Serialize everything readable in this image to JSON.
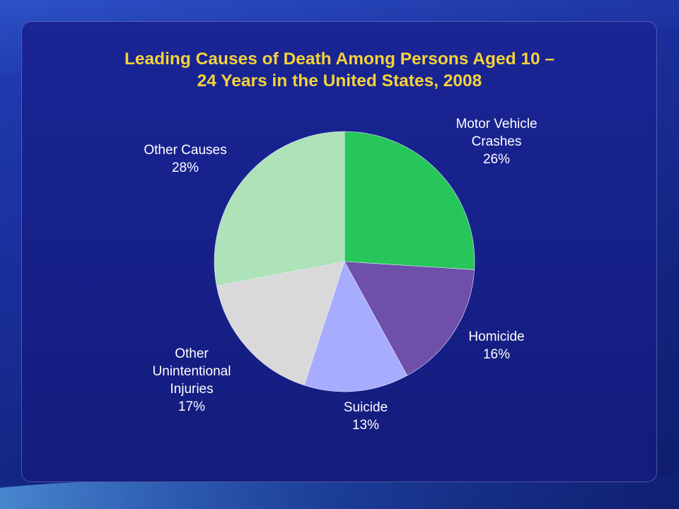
{
  "slide": {
    "title_line1": "Leading Causes of Death Among Persons Aged 10 –",
    "title_line2": "24 Years in the United States, 2008"
  },
  "chart_data": {
    "type": "pie",
    "title": "Leading Causes of Death Among Persons Aged 10 – 24 Years in the United States, 2008",
    "unit": "%",
    "slices": [
      {
        "label": "Motor Vehicle Crashes",
        "value": 26,
        "display": "26%",
        "color": "#26c65a",
        "label_lines": [
          "Motor Vehicle",
          "Crashes",
          "26%"
        ]
      },
      {
        "label": "Homicide",
        "value": 16,
        "display": "16%",
        "color": "#6e4faa",
        "label_lines": [
          "Homicide",
          "16%"
        ]
      },
      {
        "label": "Suicide",
        "value": 13,
        "display": "13%",
        "color": "#a8acff",
        "label_lines": [
          "Suicide",
          "13%"
        ]
      },
      {
        "label": "Other Unintentional Injuries",
        "value": 17,
        "display": "17%",
        "color": "#d9d9d9",
        "label_lines": [
          "Other",
          "Unintentional",
          "Injuries",
          "17%"
        ]
      },
      {
        "label": "Other Causes",
        "value": 28,
        "display": "28%",
        "color": "#aee2b8",
        "label_lines": [
          "Other Causes",
          "28%"
        ]
      }
    ],
    "start": "12 o'clock",
    "direction": "clockwise",
    "legend": "none",
    "labels": "outside"
  }
}
